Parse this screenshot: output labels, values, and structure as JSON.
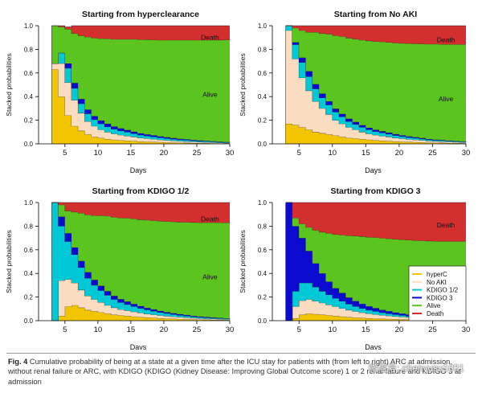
{
  "figure": {
    "caption_label": "Fig. 4",
    "caption_text": "Cumulative probability of being at a state at a given time after the ICU stay for patients with (from left to right) ARC at admission, without renal failure or ARC, with KDIGO (KDIGO (Kidney Disease: Improving Global Outcome score) 1 or 2 renal failure and KDIGO 3 at admission",
    "watermark": "微信号: chenyusu1031",
    "legend_color_key": "legend",
    "state_colors": {
      "hyperC": "#f2c500",
      "No AKI": "#fadcc0",
      "KDIGO 1/2": "#00c8d4",
      "KDIGO 3": "#0a0ad0",
      "Alive": "#5cc41e",
      "Death": "#d42f2f"
    },
    "legend": [
      {
        "label": "hyperC",
        "color": "#f2c500"
      },
      {
        "label": "No AKI",
        "color": "#fadcc0"
      },
      {
        "label": "KDIGO 1/2",
        "color": "#00c8d4"
      },
      {
        "label": "KDIGO 3",
        "color": "#0a0ad0"
      },
      {
        "label": "Alive",
        "color": "#5cc41e"
      },
      {
        "label": "Death",
        "color": "#d42f2f"
      }
    ]
  },
  "chart_data": [
    {
      "type": "area",
      "title": "Starting from hyperclearance",
      "xlabel": "Days",
      "ylabel": "Stacked probabilities",
      "xlim": [
        1,
        30
      ],
      "ylim": [
        0,
        1
      ],
      "x_ticks": [
        5,
        10,
        15,
        20,
        25,
        30
      ],
      "y_ticks": [
        "0.0",
        "0.2",
        "0.4",
        "0.6",
        "0.8",
        "1.0"
      ],
      "labels": [
        {
          "text": "Death",
          "x": 27,
          "y": 0.9
        },
        {
          "text": "Alive",
          "x": 27,
          "y": 0.42
        }
      ],
      "x": [
        3,
        4,
        5,
        6,
        7,
        8,
        9,
        10,
        11,
        12,
        13,
        14,
        15,
        16,
        17,
        18,
        19,
        20,
        21,
        22,
        23,
        24,
        25,
        26,
        27,
        28,
        29,
        30
      ],
      "series": [
        {
          "name": "hyperC",
          "values": [
            0.63,
            0.4,
            0.24,
            0.15,
            0.11,
            0.08,
            0.06,
            0.05,
            0.04,
            0.035,
            0.03,
            0.027,
            0.024,
            0.02,
            0.018,
            0.016,
            0.014,
            0.012,
            0.01,
            0.009,
            0.008,
            0.007,
            0.006,
            0.005,
            0.004,
            0.003,
            0.002,
            0.002
          ]
        },
        {
          "name": "No AKI",
          "values": [
            0.05,
            0.28,
            0.28,
            0.22,
            0.15,
            0.11,
            0.09,
            0.07,
            0.06,
            0.05,
            0.045,
            0.04,
            0.035,
            0.03,
            0.027,
            0.024,
            0.02,
            0.018,
            0.016,
            0.014,
            0.012,
            0.01,
            0.009,
            0.008,
            0.007,
            0.006,
            0.005,
            0.004
          ]
        },
        {
          "name": "KDIGO 1/2",
          "values": [
            0.0,
            0.09,
            0.12,
            0.1,
            0.08,
            0.065,
            0.055,
            0.05,
            0.045,
            0.04,
            0.036,
            0.032,
            0.028,
            0.025,
            0.022,
            0.02,
            0.018,
            0.016,
            0.014,
            0.012,
            0.011,
            0.01,
            0.009,
            0.008,
            0.007,
            0.006,
            0.005,
            0.004
          ]
        },
        {
          "name": "KDIGO 3",
          "values": [
            0.0,
            0.0,
            0.04,
            0.045,
            0.04,
            0.035,
            0.03,
            0.028,
            0.025,
            0.022,
            0.02,
            0.018,
            0.016,
            0.014,
            0.013,
            0.012,
            0.011,
            0.01,
            0.009,
            0.008,
            0.007,
            0.006,
            0.005,
            0.004,
            0.004,
            0.003,
            0.003,
            0.002
          ]
        },
        {
          "name": "Alive",
          "values": [
            0.32,
            0.22,
            0.29,
            0.42,
            0.535,
            0.615,
            0.66,
            0.693,
            0.72,
            0.738,
            0.754,
            0.768,
            0.782,
            0.794,
            0.802,
            0.808,
            0.815,
            0.822,
            0.829,
            0.835,
            0.84,
            0.845,
            0.849,
            0.853,
            0.856,
            0.861,
            0.865,
            0.869
          ]
        },
        {
          "name": "Death",
          "values": [
            0.0,
            0.01,
            0.02,
            0.065,
            0.085,
            0.095,
            0.105,
            0.109,
            0.11,
            0.115,
            0.115,
            0.115,
            0.115,
            0.117,
            0.118,
            0.12,
            0.122,
            0.122,
            0.122,
            0.122,
            0.122,
            0.122,
            0.122,
            0.122,
            0.122,
            0.121,
            0.12,
            0.119
          ]
        }
      ]
    },
    {
      "type": "area",
      "title": "Starting from No AKI",
      "xlabel": "Days",
      "ylabel": "Stacked probabilities",
      "xlim": [
        1,
        30
      ],
      "ylim": [
        0,
        1
      ],
      "x_ticks": [
        5,
        10,
        15,
        20,
        25,
        30
      ],
      "y_ticks": [
        "0.0",
        "0.2",
        "0.4",
        "0.6",
        "0.8",
        "1.0"
      ],
      "labels": [
        {
          "text": "Death",
          "x": 27,
          "y": 0.88
        },
        {
          "text": "Alive",
          "x": 27,
          "y": 0.38
        }
      ],
      "x": [
        3,
        4,
        5,
        6,
        7,
        8,
        9,
        10,
        11,
        12,
        13,
        14,
        15,
        16,
        17,
        18,
        19,
        20,
        21,
        22,
        23,
        24,
        25,
        26,
        27,
        28,
        29,
        30
      ],
      "series": [
        {
          "name": "hyperC",
          "values": [
            0.17,
            0.16,
            0.14,
            0.12,
            0.1,
            0.09,
            0.08,
            0.07,
            0.06,
            0.05,
            0.045,
            0.04,
            0.035,
            0.03,
            0.027,
            0.024,
            0.02,
            0.018,
            0.016,
            0.014,
            0.012,
            0.01,
            0.009,
            0.008,
            0.007,
            0.006,
            0.005,
            0.004
          ]
        },
        {
          "name": "No AKI",
          "values": [
            0.79,
            0.56,
            0.42,
            0.33,
            0.26,
            0.21,
            0.17,
            0.13,
            0.11,
            0.09,
            0.075,
            0.06,
            0.05,
            0.045,
            0.04,
            0.035,
            0.03,
            0.026,
            0.022,
            0.02,
            0.018,
            0.015,
            0.013,
            0.012,
            0.01,
            0.009,
            0.008,
            0.007
          ]
        },
        {
          "name": "KDIGO 1/2",
          "values": [
            0.04,
            0.12,
            0.13,
            0.12,
            0.105,
            0.09,
            0.08,
            0.07,
            0.06,
            0.05,
            0.045,
            0.04,
            0.035,
            0.03,
            0.027,
            0.024,
            0.021,
            0.018,
            0.016,
            0.014,
            0.012,
            0.01,
            0.009,
            0.008,
            0.007,
            0.006,
            0.005,
            0.004
          ]
        },
        {
          "name": "KDIGO 3",
          "values": [
            0.0,
            0.02,
            0.04,
            0.045,
            0.04,
            0.035,
            0.03,
            0.027,
            0.024,
            0.022,
            0.02,
            0.018,
            0.016,
            0.014,
            0.013,
            0.012,
            0.011,
            0.01,
            0.009,
            0.008,
            0.007,
            0.006,
            0.005,
            0.004,
            0.004,
            0.003,
            0.003,
            0.002
          ]
        },
        {
          "name": "Alive",
          "values": [
            0.0,
            0.12,
            0.23,
            0.33,
            0.44,
            0.51,
            0.57,
            0.62,
            0.655,
            0.684,
            0.702,
            0.72,
            0.736,
            0.748,
            0.757,
            0.764,
            0.772,
            0.78,
            0.786,
            0.792,
            0.797,
            0.803,
            0.808,
            0.811,
            0.814,
            0.818,
            0.821,
            0.825
          ]
        },
        {
          "name": "Death",
          "values": [
            0.0,
            0.02,
            0.04,
            0.055,
            0.055,
            0.065,
            0.07,
            0.083,
            0.091,
            0.104,
            0.113,
            0.122,
            0.128,
            0.133,
            0.136,
            0.141,
            0.146,
            0.148,
            0.151,
            0.152,
            0.154,
            0.156,
            0.156,
            0.157,
            0.158,
            0.158,
            0.158,
            0.158
          ]
        }
      ]
    },
    {
      "type": "area",
      "title": "Starting from KDIGO 1/2",
      "xlabel": "Days",
      "ylabel": "Stacked probabilities",
      "xlim": [
        1,
        30
      ],
      "ylim": [
        0,
        1
      ],
      "x_ticks": [
        5,
        10,
        15,
        20,
        25,
        30
      ],
      "y_ticks": [
        "0.0",
        "0.2",
        "0.4",
        "0.6",
        "0.8",
        "1.0"
      ],
      "labels": [
        {
          "text": "Death",
          "x": 27,
          "y": 0.86
        },
        {
          "text": "Alive",
          "x": 27,
          "y": 0.37
        }
      ],
      "x": [
        3,
        4,
        5,
        6,
        7,
        8,
        9,
        10,
        11,
        12,
        13,
        14,
        15,
        16,
        17,
        18,
        19,
        20,
        21,
        22,
        23,
        24,
        25,
        26,
        27,
        28,
        29,
        30
      ],
      "series": [
        {
          "name": "hyperC",
          "values": [
            0.0,
            0.04,
            0.12,
            0.13,
            0.11,
            0.09,
            0.08,
            0.07,
            0.06,
            0.05,
            0.045,
            0.04,
            0.035,
            0.03,
            0.027,
            0.024,
            0.02,
            0.018,
            0.016,
            0.014,
            0.012,
            0.01,
            0.009,
            0.008,
            0.007,
            0.006,
            0.005,
            0.004
          ]
        },
        {
          "name": "No AKI",
          "values": [
            0.0,
            0.3,
            0.23,
            0.19,
            0.15,
            0.12,
            0.1,
            0.085,
            0.07,
            0.06,
            0.05,
            0.045,
            0.04,
            0.035,
            0.03,
            0.027,
            0.024,
            0.021,
            0.018,
            0.016,
            0.014,
            0.012,
            0.01,
            0.009,
            0.008,
            0.007,
            0.006,
            0.005
          ]
        },
        {
          "name": "KDIGO 1/2",
          "values": [
            1.0,
            0.46,
            0.32,
            0.24,
            0.19,
            0.15,
            0.12,
            0.1,
            0.085,
            0.07,
            0.06,
            0.052,
            0.045,
            0.04,
            0.035,
            0.03,
            0.026,
            0.022,
            0.019,
            0.016,
            0.014,
            0.012,
            0.01,
            0.009,
            0.008,
            0.007,
            0.006,
            0.005
          ]
        },
        {
          "name": "KDIGO 3",
          "values": [
            0.0,
            0.08,
            0.07,
            0.06,
            0.055,
            0.05,
            0.045,
            0.04,
            0.035,
            0.03,
            0.027,
            0.024,
            0.021,
            0.018,
            0.016,
            0.014,
            0.012,
            0.011,
            0.01,
            0.009,
            0.008,
            0.007,
            0.006,
            0.005,
            0.004,
            0.004,
            0.003,
            0.003
          ]
        },
        {
          "name": "Alive",
          "values": [
            0.0,
            0.1,
            0.19,
            0.3,
            0.405,
            0.485,
            0.545,
            0.595,
            0.635,
            0.665,
            0.688,
            0.707,
            0.72,
            0.732,
            0.743,
            0.752,
            0.761,
            0.768,
            0.774,
            0.78,
            0.785,
            0.79,
            0.795,
            0.799,
            0.803,
            0.806,
            0.809,
            0.813
          ]
        },
        {
          "name": "Death",
          "values": [
            0.0,
            0.02,
            0.07,
            0.08,
            0.09,
            0.105,
            0.11,
            0.11,
            0.115,
            0.125,
            0.13,
            0.132,
            0.139,
            0.145,
            0.149,
            0.153,
            0.157,
            0.16,
            0.163,
            0.165,
            0.167,
            0.169,
            0.17,
            0.17,
            0.17,
            0.17,
            0.171,
            0.17
          ]
        }
      ]
    },
    {
      "type": "area",
      "title": "Starting from KDIGO 3",
      "xlabel": "Days",
      "ylabel": "Stacked probabilities",
      "xlim": [
        1,
        30
      ],
      "ylim": [
        0,
        1
      ],
      "x_ticks": [
        5,
        10,
        15,
        20,
        25,
        30
      ],
      "y_ticks": [
        "0.0",
        "0.2",
        "0.4",
        "0.6",
        "0.8",
        "1.0"
      ],
      "labels": [
        {
          "text": "Death",
          "x": 27,
          "y": 0.81
        }
      ],
      "x": [
        3,
        4,
        5,
        6,
        7,
        8,
        9,
        10,
        11,
        12,
        13,
        14,
        15,
        16,
        17,
        18,
        19,
        20,
        21,
        22,
        23,
        24,
        25,
        26,
        27,
        28,
        29,
        30
      ],
      "series": [
        {
          "name": "hyperC",
          "values": [
            0.0,
            0.02,
            0.05,
            0.06,
            0.055,
            0.05,
            0.045,
            0.04,
            0.035,
            0.03,
            0.026,
            0.023,
            0.02,
            0.018,
            0.016,
            0.014,
            0.012,
            0.01,
            0.009,
            0.008,
            0.007,
            0.006,
            0.005,
            0.004,
            0.004,
            0.003,
            0.003,
            0.002
          ]
        },
        {
          "name": "No AKI",
          "values": [
            0.0,
            0.1,
            0.12,
            0.12,
            0.11,
            0.1,
            0.09,
            0.08,
            0.07,
            0.06,
            0.052,
            0.045,
            0.04,
            0.035,
            0.03,
            0.027,
            0.024,
            0.021,
            0.018,
            0.016,
            0.014,
            0.012,
            0.01,
            0.009,
            0.008,
            0.007,
            0.006,
            0.005
          ]
        },
        {
          "name": "KDIGO 1/2",
          "values": [
            0.0,
            0.13,
            0.15,
            0.14,
            0.12,
            0.1,
            0.085,
            0.07,
            0.06,
            0.05,
            0.043,
            0.036,
            0.03,
            0.026,
            0.022,
            0.019,
            0.016,
            0.014,
            0.012,
            0.01,
            0.009,
            0.008,
            0.007,
            0.006,
            0.005,
            0.004,
            0.004,
            0.003
          ]
        },
        {
          "name": "KDIGO 3",
          "values": [
            1.0,
            0.55,
            0.38,
            0.27,
            0.2,
            0.15,
            0.11,
            0.085,
            0.07,
            0.055,
            0.045,
            0.038,
            0.032,
            0.027,
            0.023,
            0.02,
            0.017,
            0.015,
            0.013,
            0.011,
            0.01,
            0.009,
            0.008,
            0.007,
            0.006,
            0.005,
            0.004,
            0.004
          ]
        },
        {
          "name": "Alive",
          "values": [
            0.0,
            0.07,
            0.12,
            0.2,
            0.28,
            0.35,
            0.41,
            0.455,
            0.49,
            0.525,
            0.55,
            0.57,
            0.585,
            0.598,
            0.607,
            0.614,
            0.621,
            0.626,
            0.63,
            0.634,
            0.637,
            0.64,
            0.643,
            0.646,
            0.649,
            0.652,
            0.654,
            0.656
          ]
        },
        {
          "name": "Death",
          "values": [
            0.0,
            0.13,
            0.18,
            0.21,
            0.235,
            0.25,
            0.26,
            0.27,
            0.275,
            0.28,
            0.284,
            0.288,
            0.293,
            0.296,
            0.302,
            0.306,
            0.31,
            0.314,
            0.318,
            0.321,
            0.323,
            0.325,
            0.327,
            0.328,
            0.328,
            0.329,
            0.329,
            0.33
          ]
        }
      ]
    }
  ]
}
